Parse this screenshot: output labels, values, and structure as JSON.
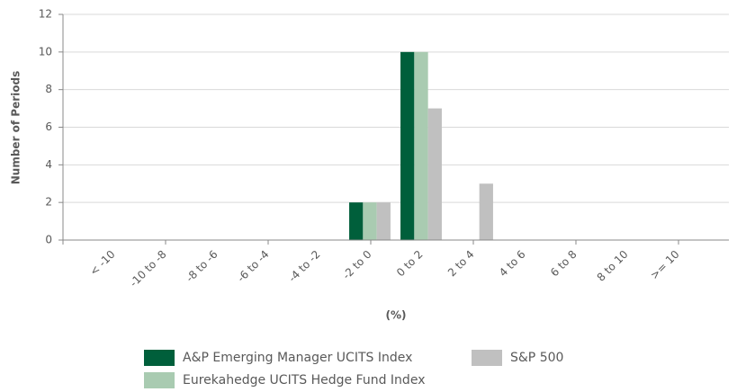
{
  "chart_data": {
    "type": "bar",
    "y_label": "Number of Periods",
    "x_label": "(%)",
    "categories": [
      "< -10",
      "-10 to -8",
      "-8 to -6",
      "-6 to -4",
      "-4 to -2",
      "-2 to 0",
      "0 to 2",
      "2 to 4",
      "4 to 6",
      "6 to 8",
      "8 to 10",
      ">= 10"
    ],
    "series": [
      {
        "name": "A&P Emerging Manager UCITS Index",
        "color": "#005f3b",
        "values": [
          0,
          0,
          0,
          0,
          0,
          2,
          10,
          0,
          0,
          0,
          0,
          0
        ]
      },
      {
        "name": "Eurekahedge UCITS Hedge Fund Index",
        "color": "#a9cbb1",
        "values": [
          0,
          0,
          0,
          0,
          0,
          2,
          10,
          0,
          0,
          0,
          0,
          0
        ]
      },
      {
        "name": "S&P 500",
        "color": "#c0c0c0",
        "values": [
          0,
          0,
          0,
          0,
          0,
          2,
          7,
          3,
          0,
          0,
          0,
          0
        ]
      }
    ],
    "ylim": [
      0,
      12
    ],
    "yticks": [
      0,
      2,
      4,
      6,
      8,
      10,
      12
    ],
    "grid": true
  }
}
